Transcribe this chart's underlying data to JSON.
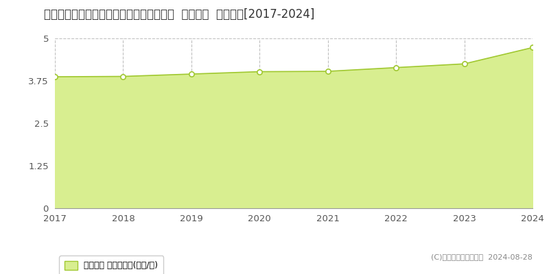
{
  "title": "鳥取県米子市西福原７丁目１０６２番１外  地価公示  地価推移[2017-2024]",
  "years": [
    2017,
    2018,
    2019,
    2020,
    2021,
    2022,
    2023,
    2024
  ],
  "values": [
    3.87,
    3.88,
    3.95,
    4.02,
    4.03,
    4.14,
    4.25,
    4.73
  ],
  "ylim": [
    0,
    5
  ],
  "yticks": [
    0,
    1.25,
    2.5,
    3.75,
    5
  ],
  "ytick_labels": [
    "0",
    "1.25",
    "2.5",
    "3.75",
    "5"
  ],
  "line_color": "#a0c830",
  "fill_color": "#d8ee90",
  "marker_facecolor": "#ffffff",
  "marker_edgecolor": "#a0c830",
  "grid_color": "#c0c0c0",
  "background_color": "#ffffff",
  "plot_bg_color": "#ffffff",
  "legend_label": "地価公示 平均坪単価(万円/坪)",
  "copyright_text": "(C)土地価格ドットコム  2024-08-28",
  "title_fontsize": 12,
  "tick_fontsize": 9.5,
  "legend_fontsize": 9
}
